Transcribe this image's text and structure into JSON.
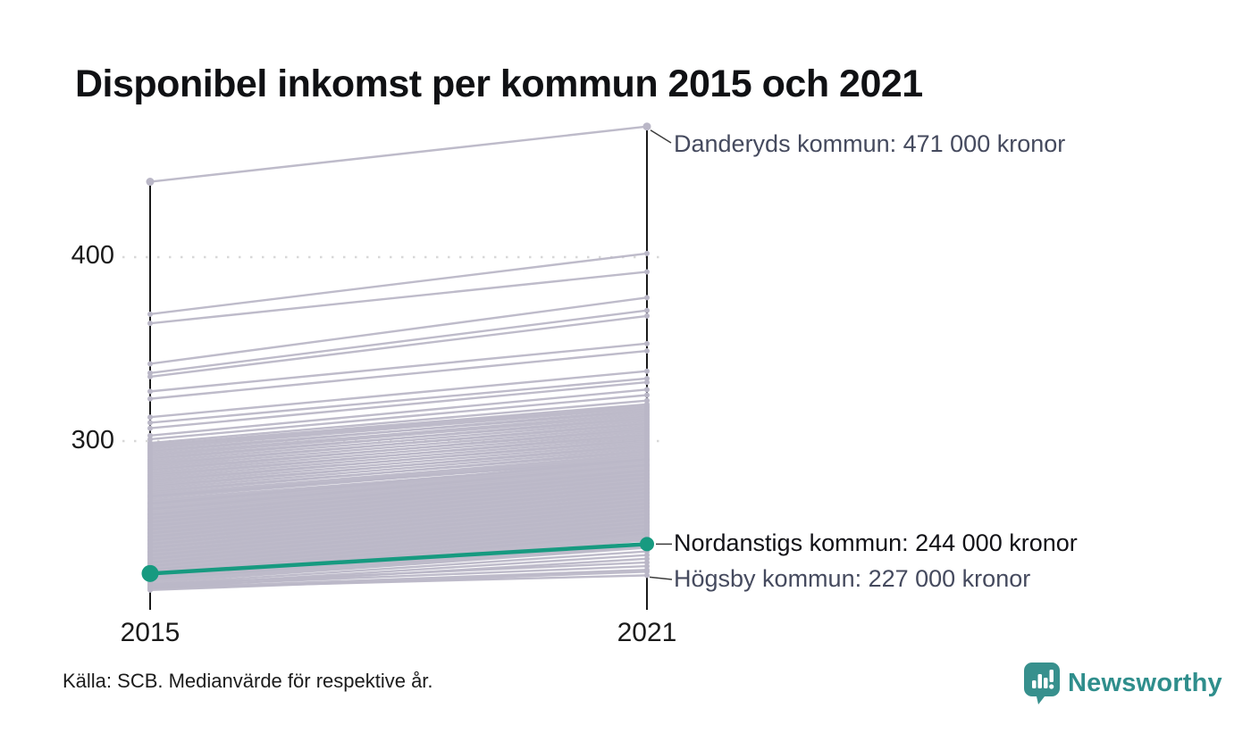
{
  "header": {
    "title": "Disponibel inkomst per kommun 2015 och 2021"
  },
  "source": {
    "text": "Källa: SCB. Medianvärde för respektive år."
  },
  "logo": {
    "text": "Newsworthy",
    "icon": "newsworthy-bubble-barchart-icon",
    "text_color": "#2f8e8c",
    "icon_color": "#37908d"
  },
  "chart_data": {
    "type": "line",
    "subtype": "slope-chart",
    "title": "Disponibel inkomst per kommun 2015 och 2021",
    "x_categories": [
      "2015",
      "2021"
    ],
    "y_ticks": [
      400,
      300
    ],
    "y_tick_labels": [
      "400",
      "300"
    ],
    "grid": "dotted-horizontal",
    "colors": {
      "highlight": "#179a80",
      "background_line": "#bab7c7",
      "axis": "#1a1a1a",
      "grid": "#d8d8d8",
      "annotation_text": "#454a5e",
      "annotation_highlight_text": "#121217"
    },
    "highlight": {
      "name": "Nordanstigs kommun",
      "values": [
        228,
        244
      ],
      "label": "Nordanstigs kommun: 244 000 kronor"
    },
    "annotations": [
      {
        "name": "Danderyds kommun",
        "value_2021": 471,
        "label": "Danderyds kommun: 471 000 kronor"
      },
      {
        "name": "Nordanstigs kommun",
        "value_2021": 244,
        "label": "Nordanstigs kommun: 244 000 kronor"
      },
      {
        "name": "Högsby kommun",
        "value_2021": 227,
        "label": "Högsby kommun: 227 000 kronor"
      }
    ],
    "background_series": [
      [
        441,
        471
      ],
      [
        369,
        402
      ],
      [
        364,
        392
      ],
      [
        342,
        378
      ],
      [
        337,
        371
      ],
      [
        335,
        368
      ],
      [
        327,
        353
      ],
      [
        323,
        349
      ],
      [
        313,
        338
      ],
      [
        310,
        334
      ],
      [
        307,
        332
      ],
      [
        303,
        328
      ],
      [
        301,
        325
      ],
      [
        299,
        322
      ],
      [
        298,
        320
      ],
      [
        297,
        319
      ],
      [
        296,
        318
      ],
      [
        295,
        316
      ],
      [
        294,
        317
      ],
      [
        293,
        315
      ],
      [
        292,
        314
      ],
      [
        291,
        312
      ],
      [
        290,
        313
      ],
      [
        289,
        311
      ],
      [
        288,
        309
      ],
      [
        287,
        310
      ],
      [
        286,
        308
      ],
      [
        285,
        306
      ],
      [
        284,
        307
      ],
      [
        283,
        305
      ],
      [
        282,
        303
      ],
      [
        281,
        304
      ],
      [
        280,
        302
      ],
      [
        279,
        300
      ],
      [
        278,
        301
      ],
      [
        277,
        299
      ],
      [
        276,
        297
      ],
      [
        275,
        298
      ],
      [
        274,
        296
      ],
      [
        273,
        294
      ],
      [
        272,
        295
      ],
      [
        271,
        293
      ],
      [
        270,
        292
      ],
      [
        270,
        290
      ],
      [
        269,
        291
      ],
      [
        268,
        289
      ],
      [
        267,
        288
      ],
      [
        266,
        287
      ],
      [
        266,
        290
      ],
      [
        265,
        286
      ],
      [
        264,
        285
      ],
      [
        263,
        284
      ],
      [
        263,
        287
      ],
      [
        262,
        283
      ],
      [
        261,
        282
      ],
      [
        260,
        281
      ],
      [
        260,
        284
      ],
      [
        259,
        280
      ],
      [
        258,
        279
      ],
      [
        258,
        282
      ],
      [
        257,
        278
      ],
      [
        256,
        277
      ],
      [
        256,
        280
      ],
      [
        255,
        276
      ],
      [
        254,
        275
      ],
      [
        254,
        278
      ],
      [
        253,
        274
      ],
      [
        252,
        273
      ],
      [
        252,
        276
      ],
      [
        251,
        272
      ],
      [
        250,
        271
      ],
      [
        250,
        274
      ],
      [
        249,
        270
      ],
      [
        248,
        269
      ],
      [
        248,
        272
      ],
      [
        247,
        268
      ],
      [
        246,
        267
      ],
      [
        246,
        270
      ],
      [
        245,
        266
      ],
      [
        244,
        265
      ],
      [
        244,
        268
      ],
      [
        243,
        264
      ],
      [
        242,
        263
      ],
      [
        242,
        266
      ],
      [
        241,
        262
      ],
      [
        240,
        261
      ],
      [
        240,
        264
      ],
      [
        239,
        260
      ],
      [
        238,
        259
      ],
      [
        238,
        262
      ],
      [
        237,
        258
      ],
      [
        236,
        257
      ],
      [
        236,
        260
      ],
      [
        235,
        256
      ],
      [
        234,
        255
      ],
      [
        234,
        258
      ],
      [
        233,
        254
      ],
      [
        232,
        253
      ],
      [
        232,
        256
      ],
      [
        231,
        252
      ],
      [
        230,
        251
      ],
      [
        230,
        254
      ],
      [
        229,
        250
      ],
      [
        228,
        249
      ],
      [
        228,
        252
      ],
      [
        227,
        248
      ],
      [
        226,
        247
      ],
      [
        226,
        250
      ],
      [
        225,
        246
      ],
      [
        225,
        244
      ],
      [
        224,
        243
      ],
      [
        223,
        242
      ],
      [
        222,
        240
      ],
      [
        221,
        238
      ],
      [
        220,
        236
      ],
      [
        222,
        234
      ],
      [
        221,
        232
      ],
      [
        220,
        230
      ],
      [
        219,
        229
      ],
      [
        220,
        227
      ]
    ]
  }
}
